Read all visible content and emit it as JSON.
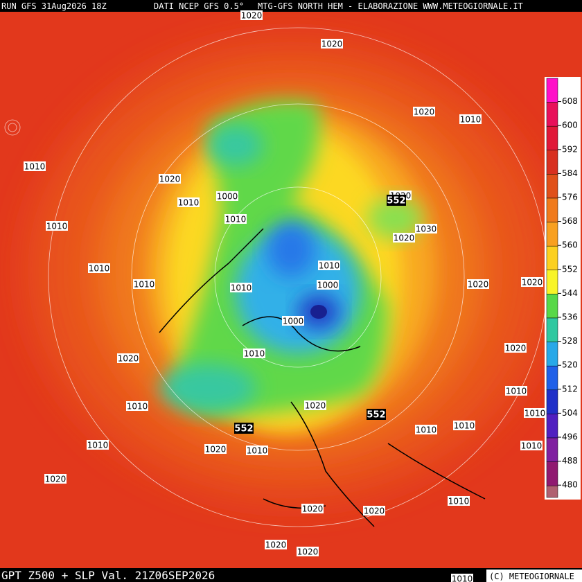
{
  "header": {
    "run": "RUN GFS 31Aug2026 18Z",
    "source": "DATI NCEP GFS 0.5°",
    "producer": "MTG-GFS NORTH HEM - ELABORAZIONE WWW.METEOGIORNALE.IT"
  },
  "footer": {
    "field": "GPT Z500 + SLP Val. 21Z06SEP2026",
    "copyright": "(C) METEOGIORNALE"
  },
  "colorbar": {
    "ticks": [
      608,
      600,
      592,
      584,
      576,
      568,
      560,
      552,
      544,
      536,
      528,
      520,
      512,
      504,
      496,
      488,
      480
    ],
    "colors": [
      "#ff10c8",
      "#e8105a",
      "#e01838",
      "#d83020",
      "#e0501a",
      "#f07a1c",
      "#f8a020",
      "#fcd020",
      "#f8f428",
      "#58d848",
      "#30c8a0",
      "#28a8e8",
      "#2060e8",
      "#2030c8",
      "#5020c0",
      "#8020a0",
      "#901a70",
      "#b06070"
    ]
  },
  "isobar_labels": [
    1020,
    1020,
    1020,
    1010,
    1010,
    1020,
    1010,
    1000,
    1020,
    1030,
    1020,
    1010,
    1010,
    1010,
    1010,
    1010,
    1010,
    1000,
    1020,
    1020,
    1000,
    1010,
    1020,
    1020,
    1010,
    1010,
    1020,
    1010,
    1010,
    1010,
    1010,
    1020,
    1010,
    1010,
    1020,
    1010,
    1020,
    1020,
    1020,
    1020,
    1010
  ],
  "z500_labels": [
    552,
    552,
    552
  ]
}
